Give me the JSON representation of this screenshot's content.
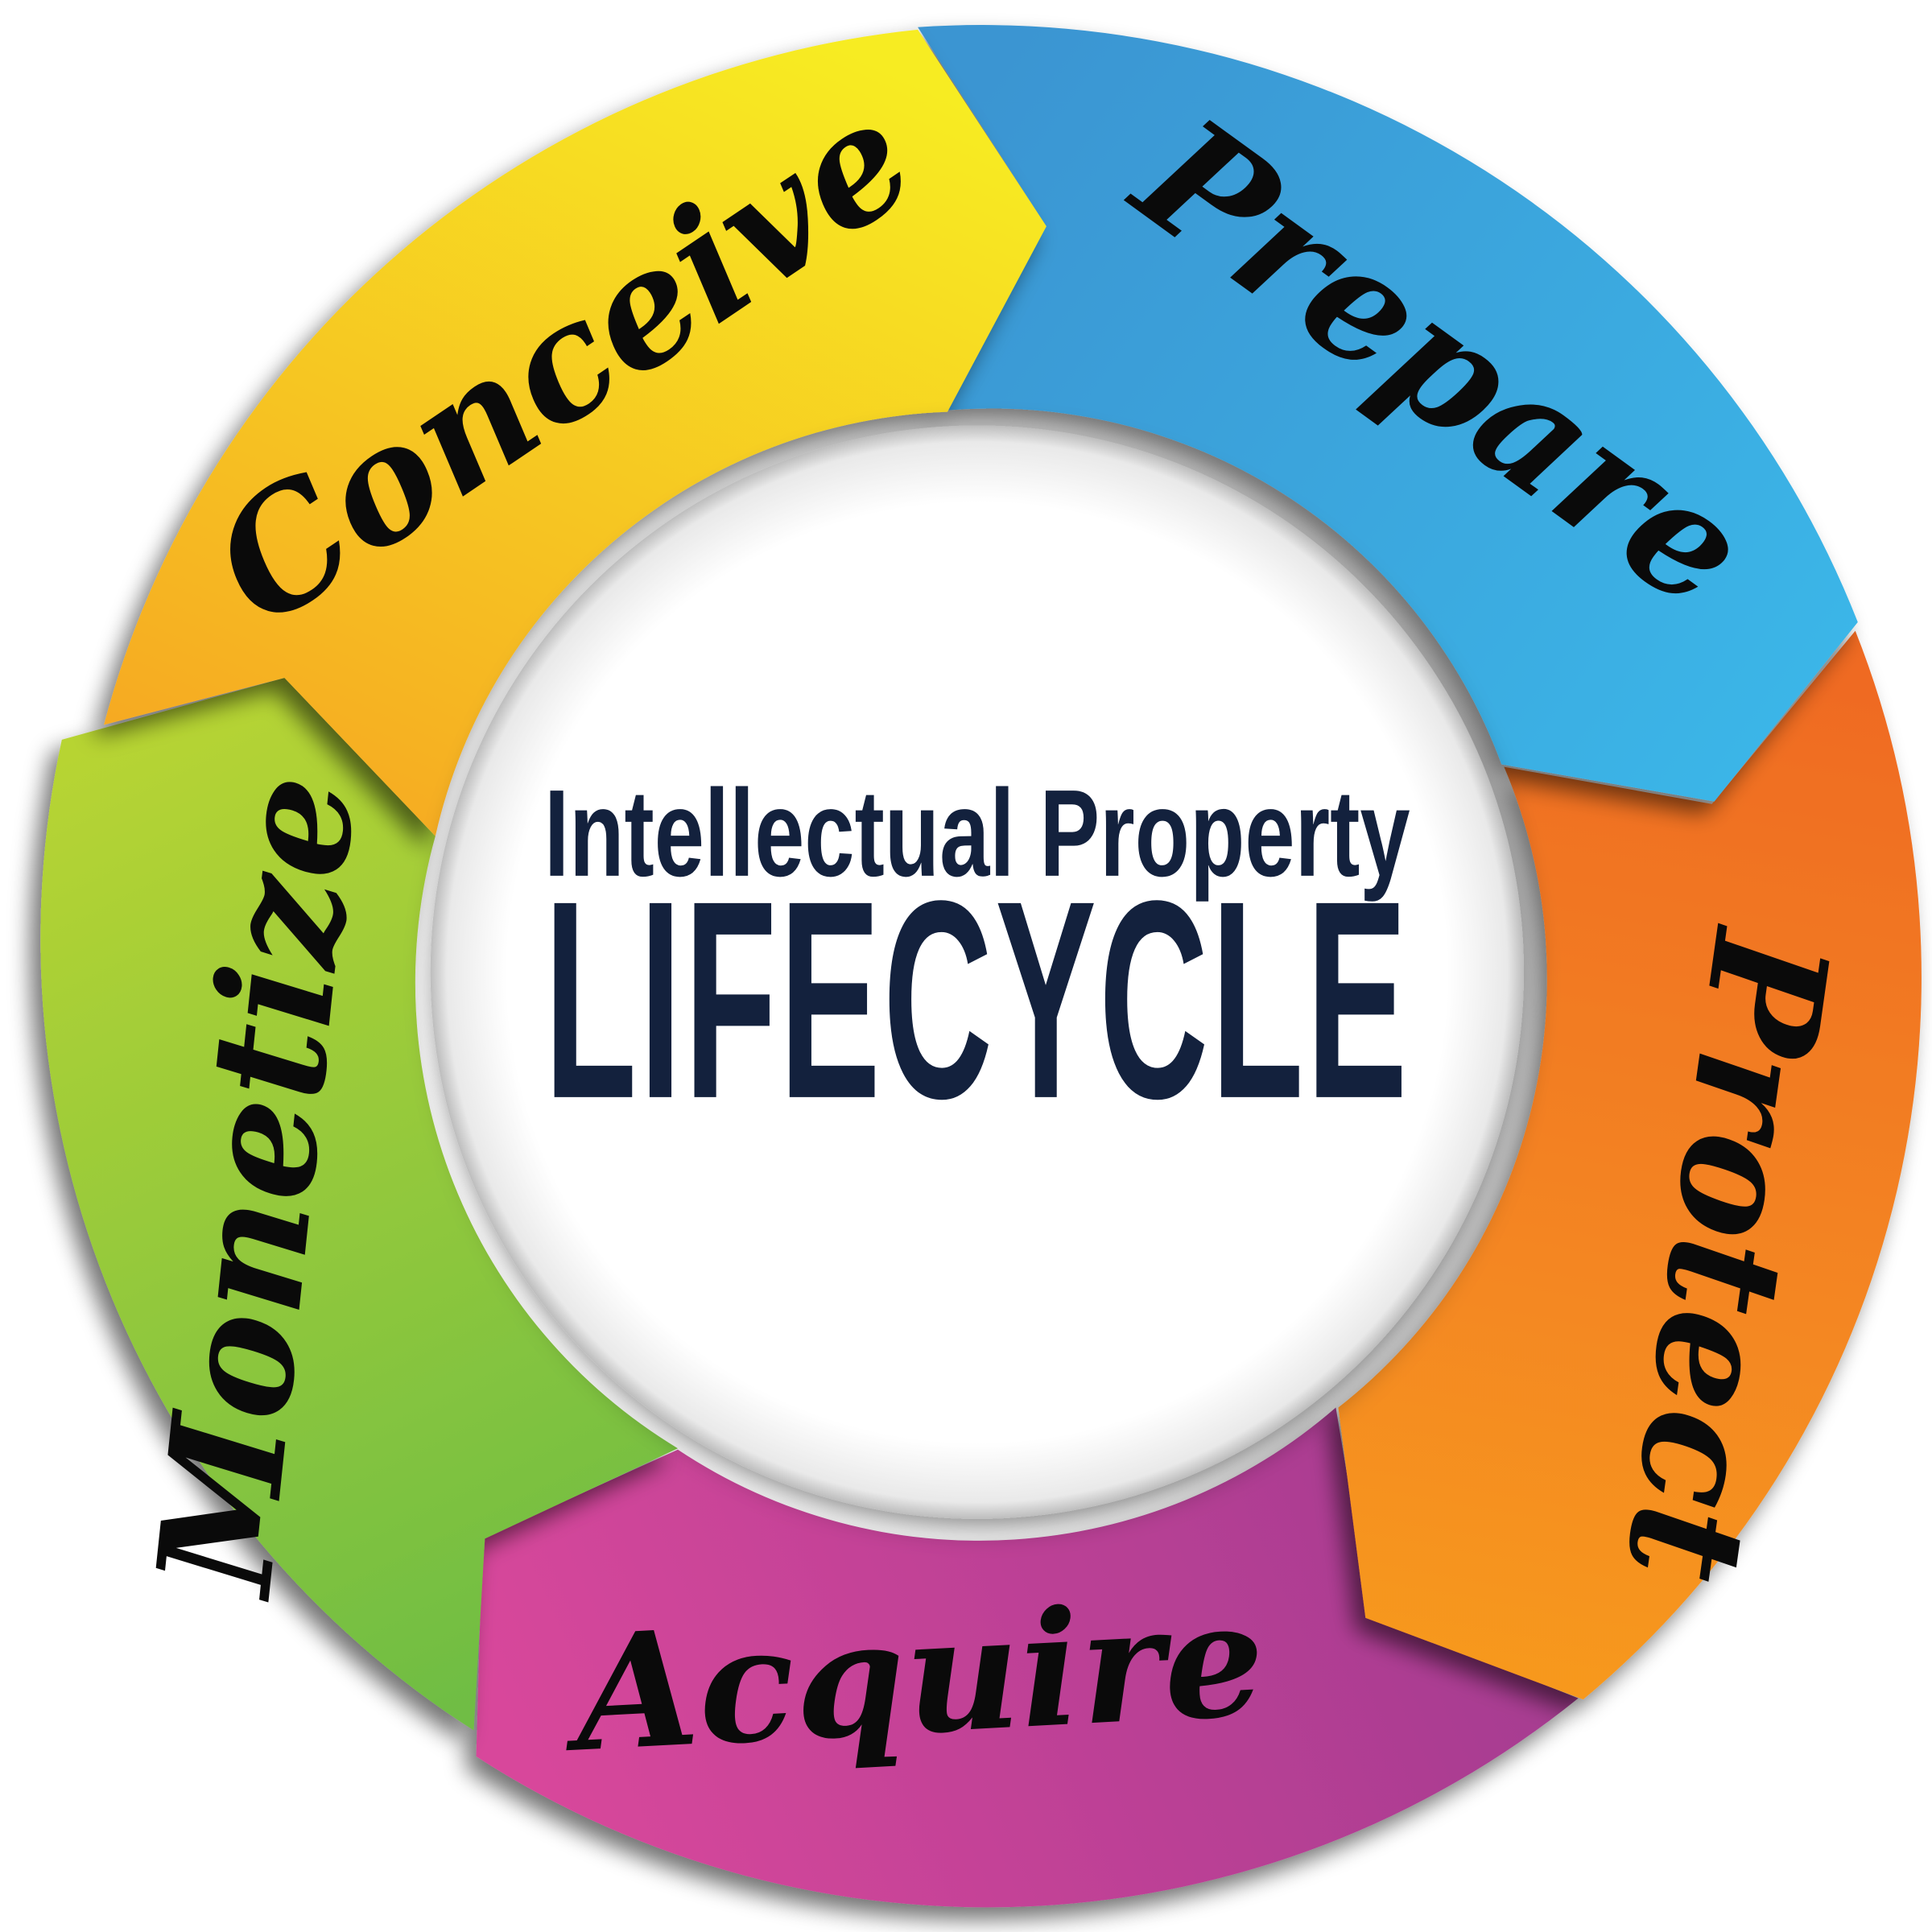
{
  "center": {
    "subtitle": "Intellectual Property",
    "title": "LIFECYCLE"
  },
  "segments": [
    {
      "label": "Conceive",
      "color_start": "#f7ec22",
      "color_end": "#f6a823"
    },
    {
      "label": "Prepare",
      "color_start": "#3a95d2",
      "color_end": "#3bb6e8"
    },
    {
      "label": "Protect",
      "color_start": "#ef6a22",
      "color_end": "#f7991f"
    },
    {
      "label": "Acquire",
      "color_start": "#d8479b",
      "color_end": "#a23b90"
    },
    {
      "label": "Monetize",
      "color_start": "#b7d433",
      "color_end": "#6fbd44"
    }
  ]
}
